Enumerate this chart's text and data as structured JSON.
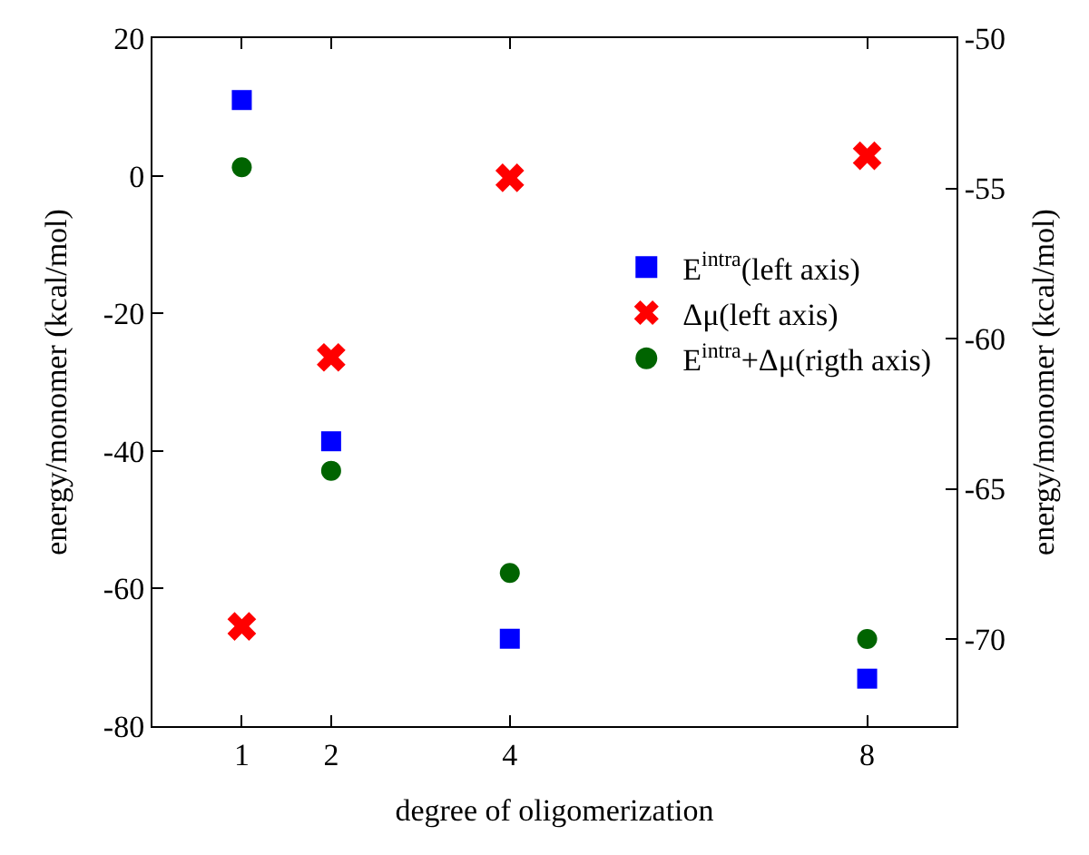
{
  "chart_data": {
    "type": "scatter",
    "xlabel": "degree of oligomerization",
    "ylabel": "energy/monomer (kcal/mol)",
    "y2label": "energy/monomer (kcal/mol)",
    "x": [
      1,
      2,
      4,
      8
    ],
    "xlim": [
      0,
      9
    ],
    "xticks": [
      1,
      2,
      4,
      8
    ],
    "ylim": [
      -80,
      20
    ],
    "yticks": [
      -80,
      -60,
      -40,
      -20,
      0,
      20
    ],
    "y2lim": [
      -72.9,
      -50
    ],
    "y2ticks": [
      -70,
      -65,
      -60,
      -55,
      -50
    ],
    "legend": "right",
    "series": [
      {
        "name": "E$^{intra}$(left axis)",
        "color": "#0000ff",
        "marker": "square",
        "values": [
          11,
          -38.6,
          -67.3,
          -73.1
        ]
      },
      {
        "name": "Δμ(left axis)",
        "color": "#ff0000",
        "marker": "cross",
        "values": [
          -65.5,
          -26.4,
          -0.3,
          2.9
        ]
      },
      {
        "name": "E$^{intra}$+Δμ(rigth axis)",
        "color": "#006400",
        "marker": "circle",
        "axis": "y2",
        "values": [
          -54.3,
          -64.4,
          -67.8,
          -70.0
        ]
      }
    ]
  }
}
